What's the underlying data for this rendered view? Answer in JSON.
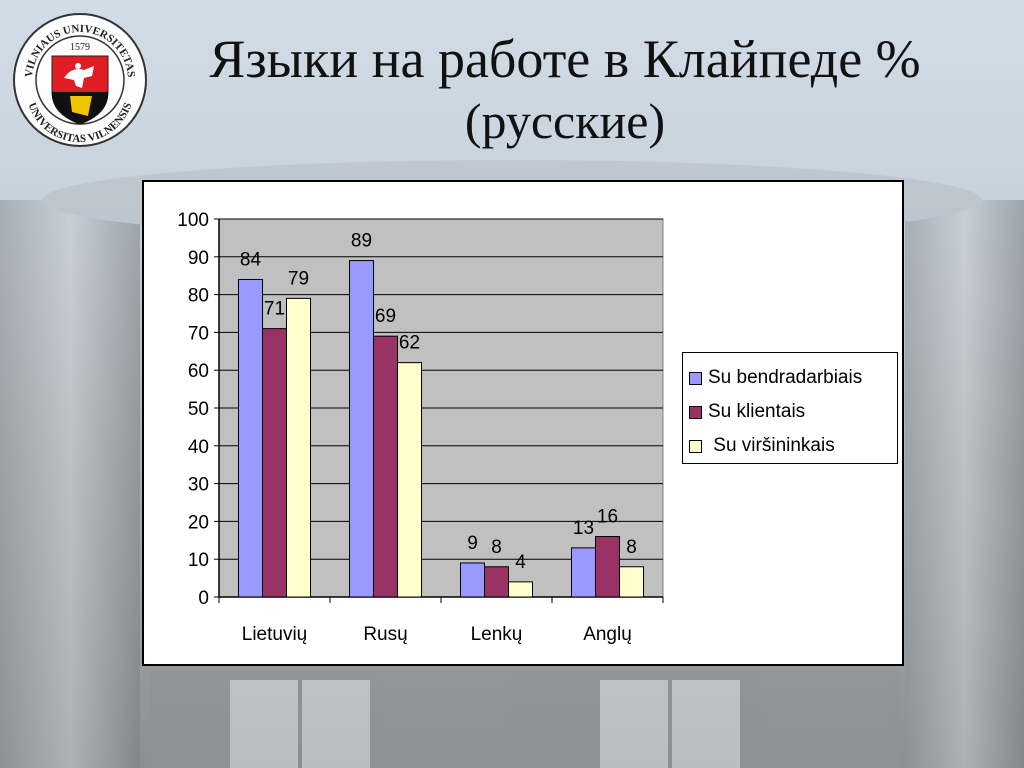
{
  "title": {
    "line1": "Языки на работе в Клайпеде %",
    "line2": "(русские)"
  },
  "seal": {
    "inscription": "VILNIAUS UNIVERSITETAS · 1579 · UNIVERSITAS VILNENSIS",
    "year": "1579"
  },
  "colors": {
    "series_1": "#9999ff",
    "series_2": "#993366",
    "series_3": "#ffffcc",
    "plot_bg": "#c0c0c0"
  },
  "chart_data": {
    "type": "bar",
    "categories": [
      "Lietuvių",
      "Rusų",
      "Lenkų",
      "Anglų"
    ],
    "series": [
      {
        "name": "Su bendradarbiais",
        "values": [
          84,
          89,
          9,
          13
        ]
      },
      {
        "name": "Su klientais",
        "values": [
          71,
          69,
          8,
          16
        ]
      },
      {
        "name": " Su viršininkais",
        "values": [
          79,
          62,
          4,
          8
        ]
      }
    ],
    "ylim": [
      0,
      100
    ],
    "yticks": [
      "0",
      "10",
      "20",
      "30",
      "40",
      "50",
      "60",
      "70",
      "80",
      "90",
      "100"
    ],
    "grid": true,
    "legend_position": "right"
  }
}
